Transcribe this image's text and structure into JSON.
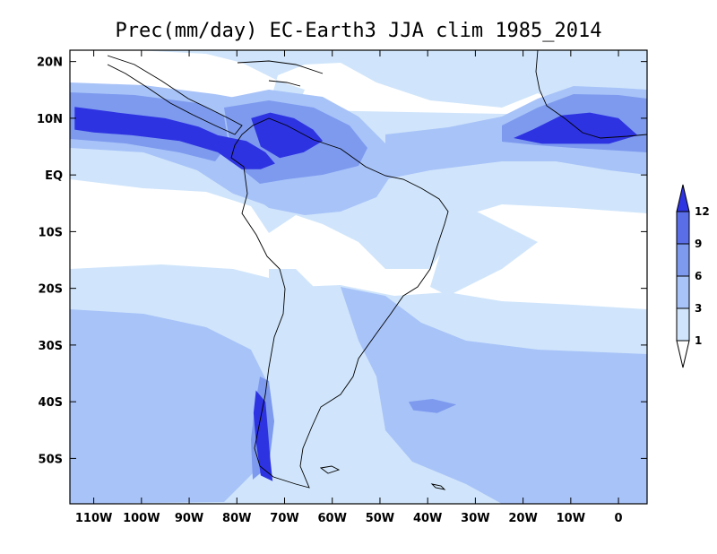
{
  "chart_data": {
    "type": "heatmap",
    "title": "Prec(mm/day) EC-Earth3 JJA clim 1985_2014",
    "variable": "Precipitation",
    "units": "mm/day",
    "model": "EC-Earth3",
    "season": "JJA",
    "period": "1985_2014",
    "xlabel": "",
    "ylabel": "",
    "lon_range": [
      -115,
      6
    ],
    "lat_range": [
      -58,
      22
    ],
    "x_ticks": [
      {
        "value": -110,
        "label": "110W"
      },
      {
        "value": -100,
        "label": "100W"
      },
      {
        "value": -90,
        "label": "90W"
      },
      {
        "value": -80,
        "label": "80W"
      },
      {
        "value": -70,
        "label": "70W"
      },
      {
        "value": -60,
        "label": "60W"
      },
      {
        "value": -50,
        "label": "50W"
      },
      {
        "value": -40,
        "label": "40W"
      },
      {
        "value": -30,
        "label": "30W"
      },
      {
        "value": -20,
        "label": "20W"
      },
      {
        "value": -10,
        "label": "10W"
      },
      {
        "value": 0,
        "label": "0"
      }
    ],
    "y_ticks": [
      {
        "value": 20,
        "label": "20N"
      },
      {
        "value": 10,
        "label": "10N"
      },
      {
        "value": 0,
        "label": "EQ"
      },
      {
        "value": -10,
        "label": "10S"
      },
      {
        "value": -20,
        "label": "20S"
      },
      {
        "value": -30,
        "label": "30S"
      },
      {
        "value": -40,
        "label": "40S"
      },
      {
        "value": -50,
        "label": "50S"
      }
    ],
    "levels": [
      1,
      3,
      6,
      9,
      12
    ],
    "level_labels": [
      "1",
      "3",
      "6",
      "9",
      "12"
    ],
    "colors": [
      "#ffffff",
      "#d0e5fb",
      "#a8c3f8",
      "#7d9aee",
      "#5a6ee8",
      "#2e33e2"
    ],
    "colorbar_position": "right",
    "features": [
      {
        "name": "ITCZ band East Pacific / Central America",
        "level_index": 5,
        "lon_lat": [
          [
            -114,
            12
          ],
          [
            -105,
            11
          ],
          [
            -95,
            10
          ],
          [
            -88,
            8.5
          ],
          [
            -84,
            7
          ],
          [
            -78,
            6
          ],
          [
            -74,
            4
          ],
          [
            -72,
            2
          ],
          [
            -75,
            1
          ],
          [
            -79,
            1
          ],
          [
            -84,
            4
          ],
          [
            -92,
            6
          ],
          [
            -102,
            7
          ],
          [
            -110,
            7.5
          ],
          [
            -114,
            8
          ]
        ]
      },
      {
        "name": "ITCZ band East Atlantic / West Africa",
        "level_index": 5,
        "lon_lat": [
          [
            -22,
            6.5
          ],
          [
            -18,
            8
          ],
          [
            -12,
            10.5
          ],
          [
            -6,
            11
          ],
          [
            0,
            10
          ],
          [
            4,
            7
          ],
          [
            -2,
            5.5
          ],
          [
            -10,
            5.5
          ],
          [
            -16,
            5.5
          ]
        ]
      },
      {
        "name": "Colombia-Venezuela convective maximum",
        "level_index": 5,
        "lon_lat": [
          [
            -77,
            10
          ],
          [
            -73,
            11
          ],
          [
            -68,
            10
          ],
          [
            -64,
            8
          ],
          [
            -62,
            6
          ],
          [
            -66,
            4
          ],
          [
            -71,
            3
          ],
          [
            -75,
            5
          ]
        ]
      },
      {
        "name": "Southern Chile storm track",
        "level_index": 5,
        "lon_lat": [
          [
            -76,
            -38
          ],
          [
            -74,
            -40
          ],
          [
            -73.5,
            -45
          ],
          [
            -73,
            -50
          ],
          [
            -72.5,
            -54
          ],
          [
            -75,
            -53
          ],
          [
            -76,
            -47
          ],
          [
            -76.5,
            -42
          ]
        ]
      },
      {
        "name": "Subtropical South Atlantic minor maximum",
        "level_index": 3,
        "lon_lat": [
          [
            -44,
            -40
          ],
          [
            -39,
            -39.5
          ],
          [
            -34,
            -40.5
          ],
          [
            -38,
            -42
          ],
          [
            -43,
            -41.5
          ]
        ]
      }
    ]
  }
}
